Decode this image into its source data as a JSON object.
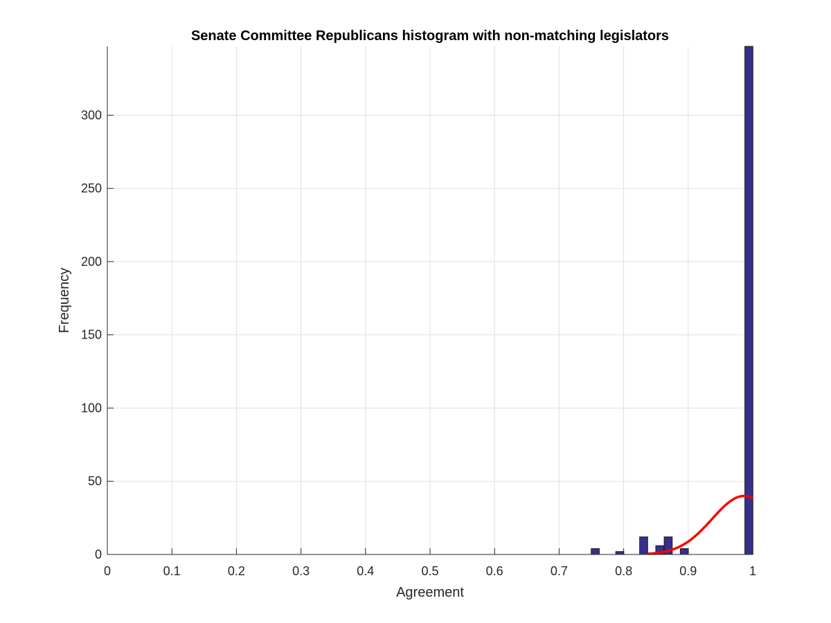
{
  "chart_data": {
    "type": "bar",
    "title": "Senate Committee Republicans histogram with non-matching legislators",
    "xlabel": "Agreement",
    "ylabel": "Frequency",
    "xlim": [
      0,
      1
    ],
    "ylim": [
      0,
      347
    ],
    "xticks": [
      0,
      0.1,
      0.2,
      0.3,
      0.4,
      0.5,
      0.6,
      0.7,
      0.8,
      0.9,
      1
    ],
    "xtick_labels": [
      "0",
      "0.1",
      "0.2",
      "0.3",
      "0.4",
      "0.5",
      "0.6",
      "0.7",
      "0.8",
      "0.9",
      "1"
    ],
    "yticks": [
      0,
      50,
      100,
      150,
      200,
      250,
      300
    ],
    "ytick_labels": [
      "0",
      "50",
      "100",
      "150",
      "200",
      "250",
      "300"
    ],
    "grid": true,
    "bin_width": 0.0125,
    "bins": [
      {
        "center": 0.756,
        "count": 4
      },
      {
        "center": 0.794,
        "count": 2
      },
      {
        "center": 0.831,
        "count": 12
      },
      {
        "center": 0.856,
        "count": 6
      },
      {
        "center": 0.869,
        "count": 12
      },
      {
        "center": 0.894,
        "count": 4
      },
      {
        "center": 0.994,
        "count": 347
      }
    ],
    "fit_curve": {
      "type": "normal",
      "color": "#ff0000",
      "x_start": 0.838,
      "x_end": 1.0,
      "peak_x": 0.987,
      "peak_y": 40,
      "sigma": 0.05
    },
    "colors": {
      "bar_fill": "#35308c",
      "bar_edge": "#1a1a1a",
      "grid": "#dfdfdf",
      "axis": "#262626",
      "curve": "#ff0000"
    }
  }
}
